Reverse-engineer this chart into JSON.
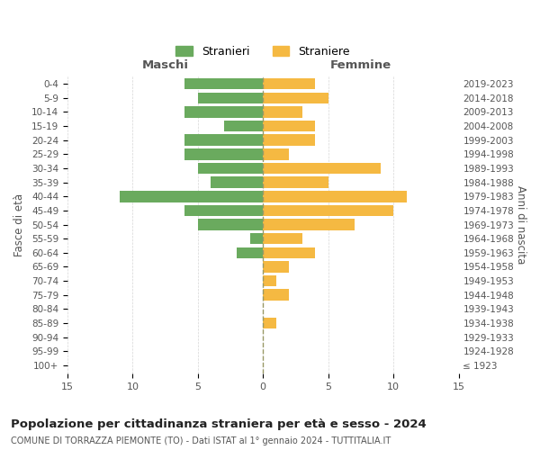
{
  "age_groups": [
    "100+",
    "95-99",
    "90-94",
    "85-89",
    "80-84",
    "75-79",
    "70-74",
    "65-69",
    "60-64",
    "55-59",
    "50-54",
    "45-49",
    "40-44",
    "35-39",
    "30-34",
    "25-29",
    "20-24",
    "15-19",
    "10-14",
    "5-9",
    "0-4"
  ],
  "birth_years": [
    "≤ 1923",
    "1924-1928",
    "1929-1933",
    "1934-1938",
    "1939-1943",
    "1944-1948",
    "1949-1953",
    "1954-1958",
    "1959-1963",
    "1964-1968",
    "1969-1973",
    "1974-1978",
    "1979-1983",
    "1984-1988",
    "1989-1993",
    "1994-1998",
    "1999-2003",
    "2004-2008",
    "2009-2013",
    "2014-2018",
    "2019-2023"
  ],
  "males": [
    0,
    0,
    0,
    0,
    0,
    0,
    0,
    0,
    2,
    1,
    5,
    6,
    11,
    4,
    5,
    6,
    6,
    3,
    6,
    5,
    6
  ],
  "females": [
    0,
    0,
    0,
    1,
    0,
    2,
    1,
    2,
    4,
    3,
    7,
    10,
    11,
    5,
    9,
    2,
    4,
    4,
    3,
    5,
    4
  ],
  "male_color": "#6aaa5e",
  "female_color": "#f5b942",
  "background_color": "#ffffff",
  "grid_color": "#cccccc",
  "title": "Popolazione per cittadinanza straniera per età e sesso - 2024",
  "subtitle": "COMUNE DI TORRAZZA PIEMONTE (TO) - Dati ISTAT al 1° gennaio 2024 - TUTTITALIA.IT",
  "left_header": "Maschi",
  "right_header": "Femmine",
  "left_ylabel": "Fasce di età",
  "right_ylabel": "Anni di nascita",
  "legend_male": "Stranieri",
  "legend_female": "Straniere",
  "xlim": 15,
  "bar_height": 0.8
}
